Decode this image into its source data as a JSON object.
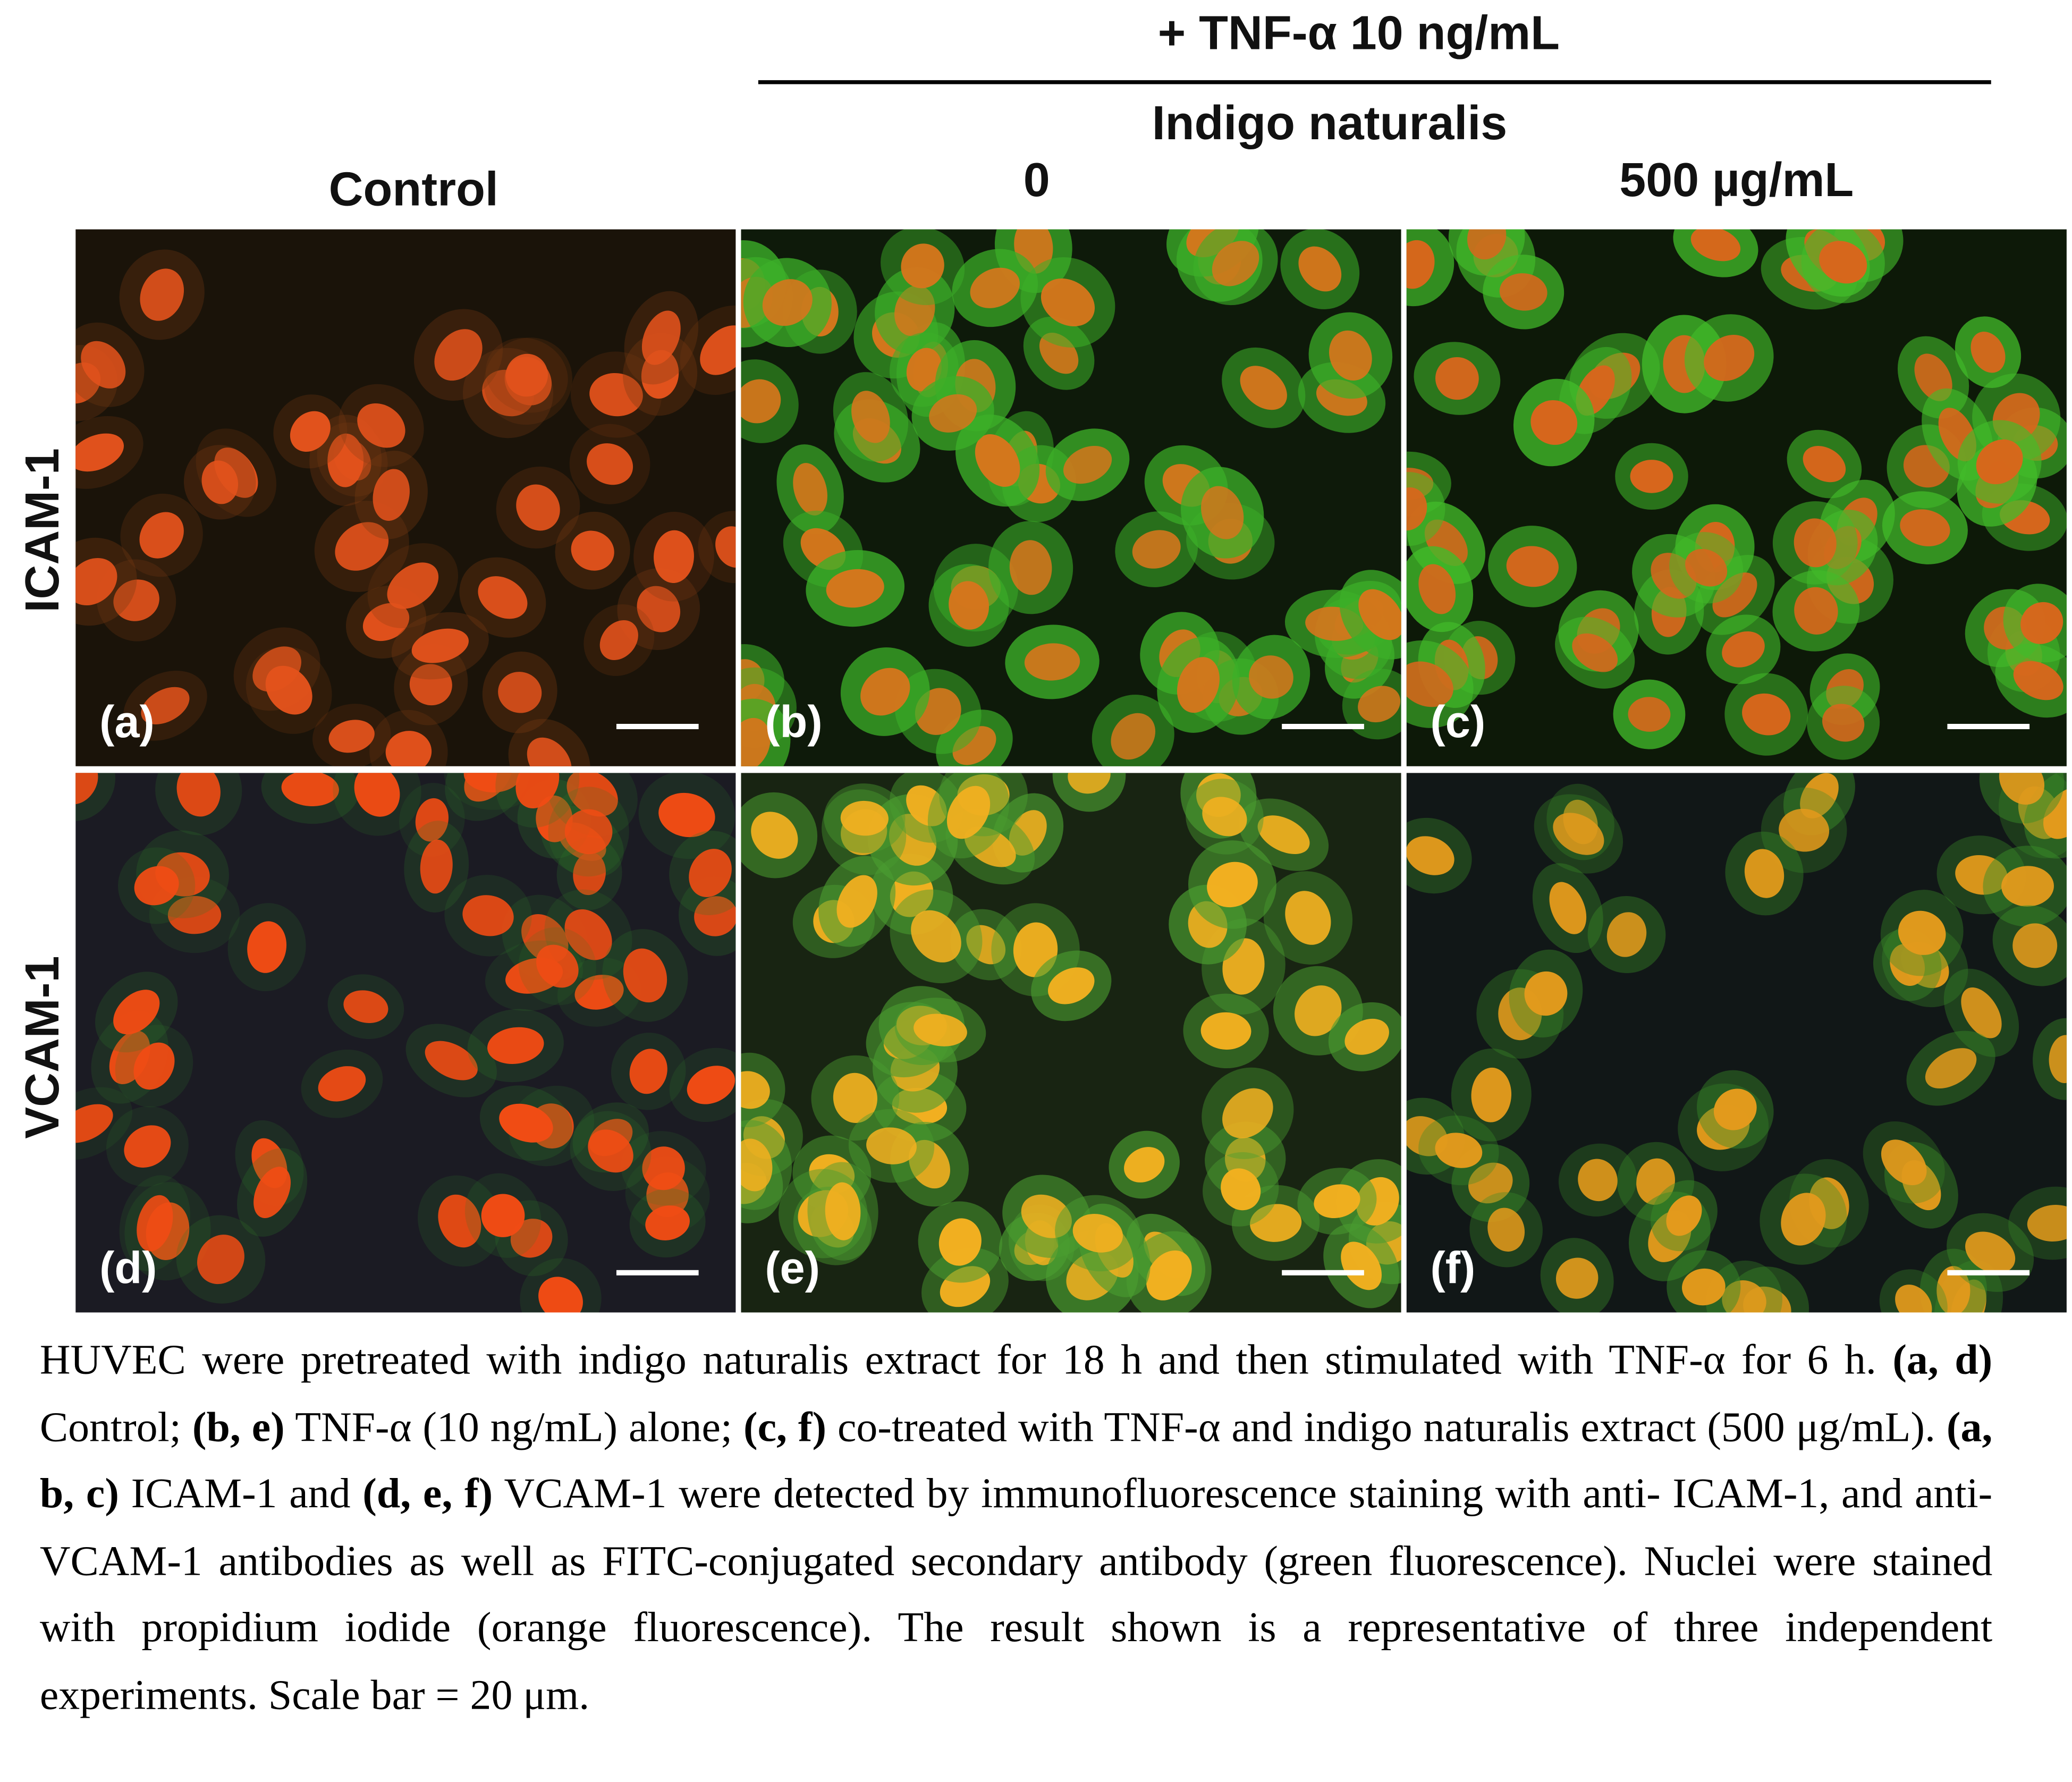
{
  "header": {
    "treatment": "+ TNF-α 10 ng/mL",
    "agent": "Indigo naturalis",
    "columns": [
      "Control",
      "0",
      "500 µg/mL"
    ]
  },
  "rows": [
    "ICAM-1",
    "VCAM-1"
  ],
  "panels": [
    "(a)",
    "(b)",
    "(c)",
    "(d)",
    "(e)",
    "(f)"
  ],
  "caption": [
    "HUVEC were pretreated with indigo naturalis extract for 18 h and then stimulated with TNF-α for 6 h. ",
    "(a, d)",
    " Control; ",
    "(b, e)",
    " TNF-α (10 ng/mL) alone; ",
    "(c, f)",
    " co-treated with TNF-α and indigo naturalis extract (500 μg/mL). ",
    "(a, b, c)",
    " ICAM-1 and ",
    "(d, e, f)",
    " VCAM-1 were detected by immunofluorescence staining with anti- ICAM-1, and anti- VCAM-1 antibodies as well as FITC-conjugated secondary antibody (green fluorescence). Nuclei were stained with propidium iodide (orange fluorescence). The result shown is a representative of three independent experiments. Scale bar = 20 μm."
  ]
}
